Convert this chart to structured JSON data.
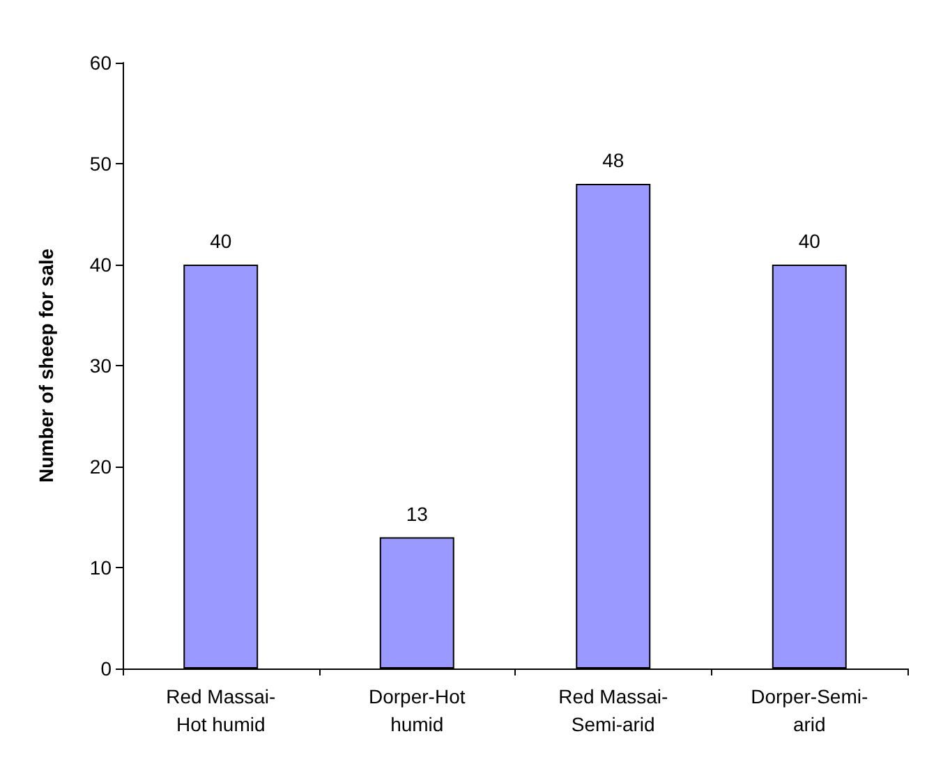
{
  "chart_data": {
    "type": "bar",
    "ylabel": "Number of sheep for sale",
    "categories": [
      "Red Massai-Hot humid",
      "Dorper-Hot humid",
      "Red Massai-Semi-arid",
      "Dorper-Semi-arid"
    ],
    "values": [
      40,
      13,
      48,
      40
    ],
    "color": "#9999ff",
    "ylim": [
      0,
      60
    ],
    "yticks": [
      0,
      10,
      20,
      30,
      40,
      50,
      60
    ],
    "data_labels": true
  }
}
